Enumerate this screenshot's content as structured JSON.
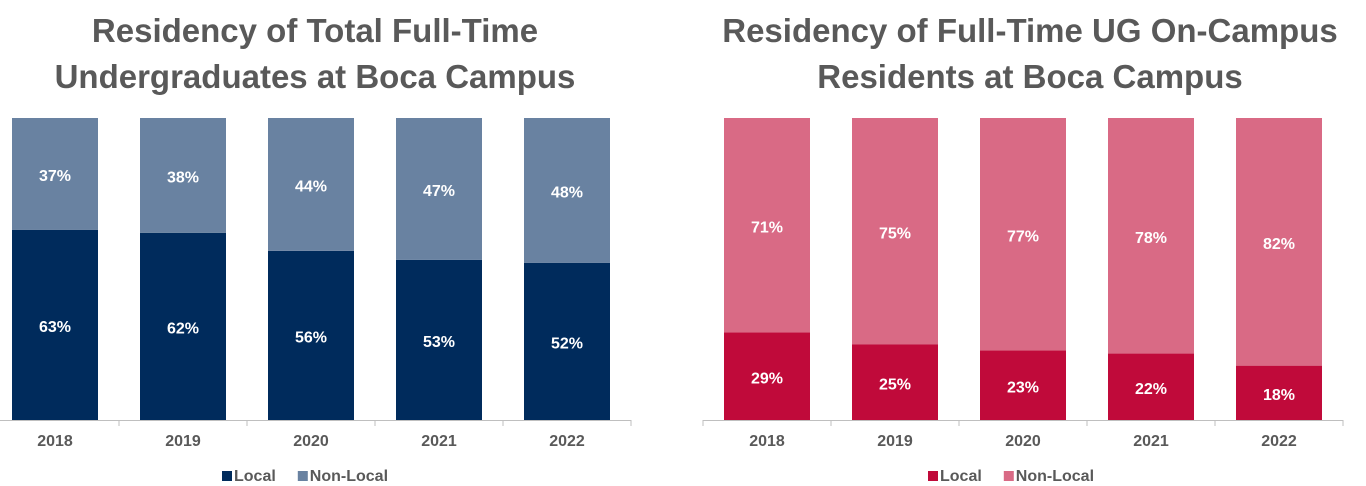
{
  "chart_data": [
    {
      "type": "stacked-bar",
      "title": "Residency of Total Full-Time Undergraduates at Boca Campus",
      "categories": [
        "2018",
        "2019",
        "2020",
        "2021",
        "2022"
      ],
      "series": [
        {
          "name": "Local",
          "color": "#002b5c",
          "values": [
            63,
            62,
            56,
            53,
            52
          ],
          "value_labels": [
            "63%",
            "62%",
            "56%",
            "53%",
            "52%"
          ]
        },
        {
          "name": "Non-Local",
          "color": "#6982a1",
          "values": [
            37,
            38,
            44,
            47,
            48
          ],
          "value_labels": [
            "37%",
            "38%",
            "44%",
            "47%",
            "48%"
          ]
        }
      ]
    },
    {
      "type": "stacked-bar",
      "title": "Residency of Full-Time UG On-Campus Residents at Boca Campus",
      "categories": [
        "2018",
        "2019",
        "2020",
        "2021",
        "2022"
      ],
      "series": [
        {
          "name": "Local",
          "color": "#c00a3a",
          "values": [
            29,
            25,
            23,
            22,
            18
          ],
          "value_labels": [
            "29%",
            "25%",
            "23%",
            "22%",
            "18%"
          ]
        },
        {
          "name": "Non-Local",
          "color": "#d96a85",
          "values": [
            71,
            75,
            77,
            78,
            82
          ],
          "value_labels": [
            "71%",
            "75%",
            "77%",
            "78%",
            "82%"
          ]
        }
      ]
    }
  ]
}
